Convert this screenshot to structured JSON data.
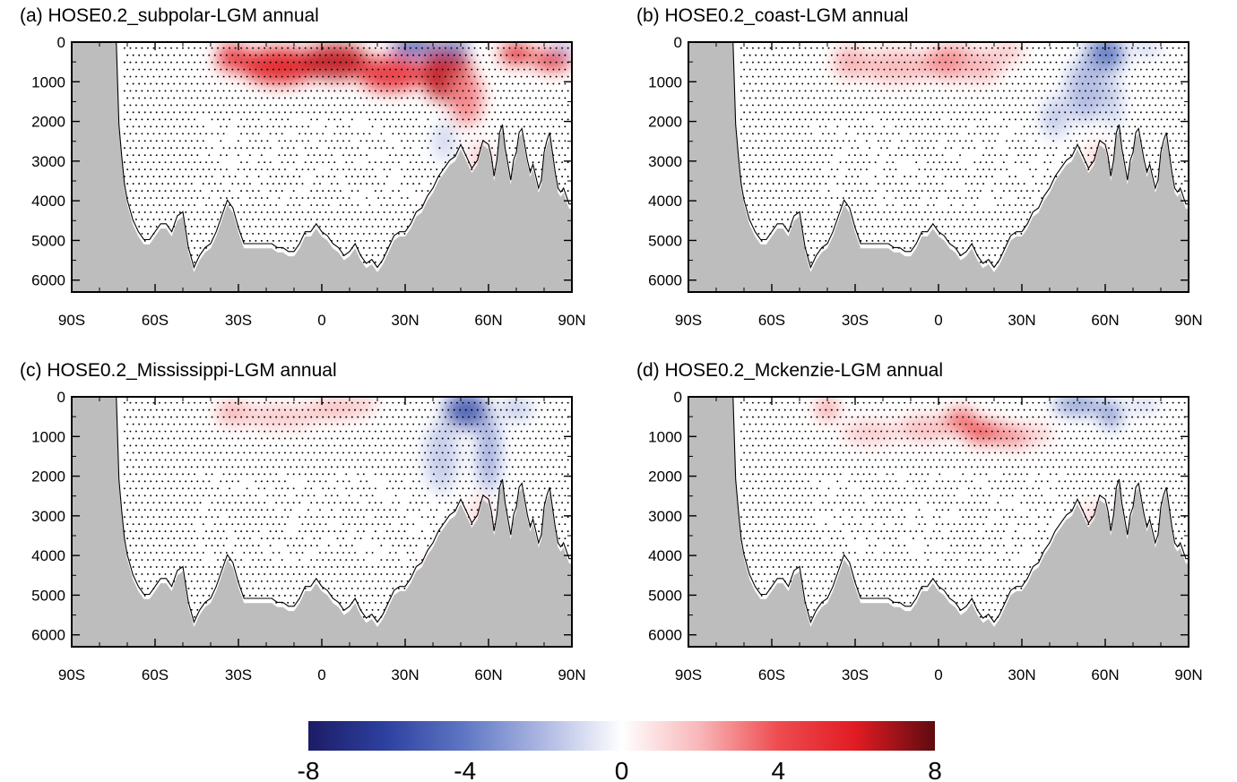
{
  "chart_data": [
    {
      "type": "heatmap",
      "panel_id": "a",
      "title": "(a)  HOSE0.2_subpolar-LGM annual",
      "x_ticks": [
        "90S",
        "60S",
        "30S",
        "0",
        "30N",
        "60N",
        "90N"
      ],
      "y_ticks": [
        "0",
        "1000",
        "2000",
        "3000",
        "4000",
        "5000",
        "6000"
      ],
      "xlim": [
        -90,
        90
      ],
      "ylim": [
        6300,
        0
      ],
      "anomalies": [
        {
          "lat": -32,
          "depth": 400,
          "value": 5,
          "rx": 6,
          "ry": 350
        },
        {
          "lat": -15,
          "depth": 600,
          "value": 6,
          "rx": 14,
          "ry": 450
        },
        {
          "lat": 5,
          "depth": 500,
          "value": 6.5,
          "rx": 12,
          "ry": 450
        },
        {
          "lat": 25,
          "depth": 800,
          "value": 5,
          "rx": 12,
          "ry": 450
        },
        {
          "lat": 45,
          "depth": 800,
          "value": 6.5,
          "rx": 9,
          "ry": 700
        },
        {
          "lat": 52,
          "depth": 1400,
          "value": 3,
          "rx": 6,
          "ry": 700
        },
        {
          "lat": 70,
          "depth": 300,
          "value": 6,
          "rx": 6,
          "ry": 250
        },
        {
          "lat": 83,
          "depth": 450,
          "value": 6,
          "rx": 7,
          "ry": 250
        },
        {
          "lat": 33,
          "depth": 120,
          "value": -5,
          "rx": 8,
          "ry": 230
        },
        {
          "lat": 47,
          "depth": 120,
          "value": -4,
          "rx": 6,
          "ry": 200
        },
        {
          "lat": 87,
          "depth": 150,
          "value": -2.5,
          "rx": 4,
          "ry": 150
        },
        {
          "lat": 44,
          "depth": 2500,
          "value": -1.2,
          "rx": 4,
          "ry": 500
        },
        {
          "lat": 57,
          "depth": 2900,
          "value": 1.5,
          "rx": 4,
          "ry": 400
        },
        {
          "lat": 41,
          "depth": 4400,
          "value": 1,
          "rx": 4,
          "ry": 400
        }
      ]
    },
    {
      "type": "heatmap",
      "panel_id": "b",
      "title": "(b)  HOSE0.2_coast-LGM annual",
      "x_ticks": [
        "90S",
        "60S",
        "30S",
        "0",
        "30N",
        "60N",
        "90N"
      ],
      "y_ticks": [
        "0",
        "1000",
        "2000",
        "3000",
        "4000",
        "5000",
        "6000"
      ],
      "xlim": [
        -90,
        90
      ],
      "ylim": [
        6300,
        0
      ],
      "anomalies": [
        {
          "lat": -32,
          "depth": 500,
          "value": 2.2,
          "rx": 6,
          "ry": 400
        },
        {
          "lat": -15,
          "depth": 600,
          "value": 2,
          "rx": 14,
          "ry": 400
        },
        {
          "lat": 5,
          "depth": 500,
          "value": 3,
          "rx": 10,
          "ry": 400
        },
        {
          "lat": 15,
          "depth": 600,
          "value": 2,
          "rx": 8,
          "ry": 400
        },
        {
          "lat": 25,
          "depth": 250,
          "value": 1.5,
          "rx": 6,
          "ry": 300
        },
        {
          "lat": 60,
          "depth": 300,
          "value": -4,
          "rx": 7,
          "ry": 450
        },
        {
          "lat": 53,
          "depth": 1200,
          "value": -2,
          "rx": 7,
          "ry": 800
        },
        {
          "lat": 42,
          "depth": 1900,
          "value": -1.5,
          "rx": 5,
          "ry": 500
        },
        {
          "lat": 63,
          "depth": 1500,
          "value": -1.5,
          "rx": 3,
          "ry": 700
        },
        {
          "lat": 75,
          "depth": 150,
          "value": -1.2,
          "rx": 6,
          "ry": 200
        },
        {
          "lat": 57,
          "depth": 2900,
          "value": 1.2,
          "rx": 4,
          "ry": 400
        }
      ]
    },
    {
      "type": "heatmap",
      "panel_id": "c",
      "title": "(c)  HOSE0.2_Mississippi-LGM annual",
      "x_ticks": [
        "90S",
        "60S",
        "30S",
        "0",
        "30N",
        "60N",
        "90N"
      ],
      "y_ticks": [
        "0",
        "1000",
        "2000",
        "3000",
        "4000",
        "5000",
        "6000"
      ],
      "xlim": [
        -90,
        90
      ],
      "ylim": [
        6300,
        0
      ],
      "anomalies": [
        {
          "lat": -32,
          "depth": 400,
          "value": 2.2,
          "rx": 6,
          "ry": 300
        },
        {
          "lat": -15,
          "depth": 500,
          "value": 1.5,
          "rx": 14,
          "ry": 300
        },
        {
          "lat": 5,
          "depth": 300,
          "value": 2,
          "rx": 10,
          "ry": 250
        },
        {
          "lat": 15,
          "depth": 200,
          "value": 1.5,
          "rx": 5,
          "ry": 250
        },
        {
          "lat": 52,
          "depth": 350,
          "value": -5,
          "rx": 8,
          "ry": 450
        },
        {
          "lat": 60,
          "depth": 1400,
          "value": -2.5,
          "rx": 4,
          "ry": 1000
        },
        {
          "lat": 43,
          "depth": 1500,
          "value": -1.5,
          "rx": 6,
          "ry": 900
        },
        {
          "lat": 70,
          "depth": 300,
          "value": -1.5,
          "rx": 6,
          "ry": 300
        },
        {
          "lat": 57,
          "depth": 2900,
          "value": 1.2,
          "rx": 4,
          "ry": 400
        },
        {
          "lat": 40,
          "depth": 4400,
          "value": 1,
          "rx": 4,
          "ry": 400
        }
      ]
    },
    {
      "type": "heatmap",
      "panel_id": "d",
      "title": "(d)  HOSE0.2_Mckenzie-LGM annual",
      "x_ticks": [
        "90S",
        "60S",
        "30S",
        "0",
        "30N",
        "60N",
        "90N"
      ],
      "y_ticks": [
        "0",
        "1000",
        "2000",
        "3000",
        "4000",
        "5000",
        "6000"
      ],
      "xlim": [
        -90,
        90
      ],
      "ylim": [
        6300,
        0
      ],
      "anomalies": [
        {
          "lat": -40,
          "depth": 300,
          "value": 2.5,
          "rx": 4,
          "ry": 300
        },
        {
          "lat": -25,
          "depth": 900,
          "value": 1.5,
          "rx": 10,
          "ry": 300
        },
        {
          "lat": -5,
          "depth": 800,
          "value": 2,
          "rx": 10,
          "ry": 300
        },
        {
          "lat": 8,
          "depth": 600,
          "value": 3.5,
          "rx": 6,
          "ry": 300
        },
        {
          "lat": 17,
          "depth": 900,
          "value": 4.5,
          "rx": 8,
          "ry": 250
        },
        {
          "lat": 27,
          "depth": 1000,
          "value": 3,
          "rx": 7,
          "ry": 250
        },
        {
          "lat": 36,
          "depth": 950,
          "value": 1.5,
          "rx": 5,
          "ry": 250
        },
        {
          "lat": 50,
          "depth": 200,
          "value": -3,
          "rx": 9,
          "ry": 250
        },
        {
          "lat": 62,
          "depth": 450,
          "value": -3,
          "rx": 4,
          "ry": 350
        },
        {
          "lat": 74,
          "depth": 200,
          "value": -1.2,
          "rx": 6,
          "ry": 200
        },
        {
          "lat": 56,
          "depth": 3000,
          "value": 1.2,
          "rx": 4,
          "ry": 400
        }
      ]
    }
  ],
  "bathymetry": {
    "lat": [
      -90,
      -74,
      -73,
      -72,
      -71,
      -70,
      -68,
      -66,
      -64,
      -62,
      -60,
      -58,
      -56,
      -54,
      -52,
      -50,
      -48,
      -46,
      -44,
      -42,
      -40,
      -38,
      -36,
      -34,
      -32,
      -30,
      -28,
      -26,
      -24,
      -22,
      -20,
      -18,
      -16,
      -14,
      -12,
      -10,
      -8,
      -6,
      -4,
      -2,
      0,
      2,
      4,
      6,
      8,
      10,
      12,
      14,
      16,
      18,
      20,
      22,
      24,
      26,
      28,
      30,
      32,
      34,
      36,
      38,
      40,
      42,
      44,
      46,
      48,
      50,
      52,
      54,
      56,
      58,
      60,
      61,
      62,
      63,
      64,
      65,
      66,
      67,
      68,
      69,
      70,
      71,
      72,
      73,
      74,
      75,
      76,
      77,
      78,
      79,
      80,
      81,
      82,
      83,
      84,
      85,
      86,
      87,
      88,
      89,
      90
    ],
    "depth": [
      0,
      0,
      2200,
      3000,
      3700,
      4100,
      4600,
      4900,
      5100,
      5100,
      4900,
      4700,
      4700,
      4900,
      4500,
      4400,
      5300,
      5800,
      5500,
      5300,
      5200,
      4900,
      4500,
      4100,
      4300,
      4800,
      5200,
      5200,
      5200,
      5200,
      5200,
      5200,
      5300,
      5300,
      5400,
      5400,
      5200,
      4900,
      4900,
      4700,
      4900,
      5000,
      5200,
      5300,
      5500,
      5400,
      5200,
      5500,
      5700,
      5600,
      5800,
      5600,
      5300,
      5000,
      4900,
      4900,
      4700,
      4400,
      4300,
      4000,
      3800,
      3500,
      3300,
      3100,
      3000,
      2700,
      3000,
      3300,
      3100,
      2600,
      2700,
      3000,
      3500,
      3100,
      2400,
      2200,
      2800,
      3200,
      3600,
      3100,
      2900,
      2400,
      2300,
      2700,
      3100,
      3400,
      3200,
      3500,
      3800,
      3600,
      2900,
      2600,
      2400,
      2900,
      3400,
      3800,
      3900,
      3800,
      4000,
      4200,
      4200
    ]
  },
  "colorbar": {
    "min": -8,
    "max": 8,
    "labels": [
      "-8",
      "-4",
      "0",
      "4",
      "8"
    ],
    "colors": [
      "#1c1c66",
      "#2e41a0",
      "#5f77c4",
      "#aeb8e2",
      "#ffffff",
      "#f8b6b8",
      "#ee4c4f",
      "#e01b22",
      "#5e0b10"
    ]
  },
  "colors": {
    "land": "#bdbdbd",
    "axis": "#000000"
  }
}
